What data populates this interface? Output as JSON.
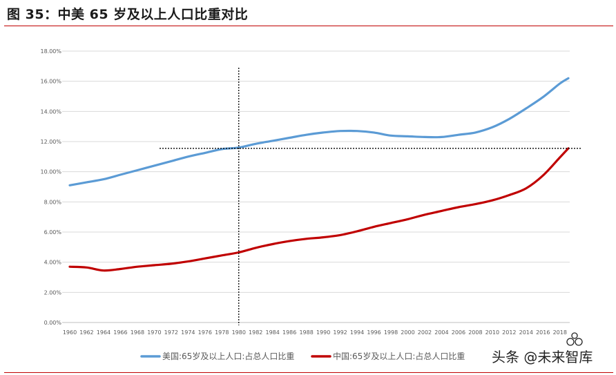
{
  "title": "图 35：中美 65 岁及以上人口比重对比",
  "colors": {
    "rule": "#c00000",
    "usa": "#5b9bd5",
    "china": "#c00000",
    "grid": "#d9d9d9",
    "ref": "#000000"
  },
  "chart_data": {
    "type": "line",
    "title": "",
    "xlabel": "",
    "ylabel": "",
    "xlim": [
      1960,
      2019
    ],
    "ylim": [
      0,
      18
    ],
    "grid": "horizontal",
    "legend_position": "bottom",
    "x_tick_labels": [
      "1960",
      "1962",
      "1964",
      "1966",
      "1968",
      "1970",
      "1972",
      "1974",
      "1976",
      "1978",
      "1980",
      "1982",
      "1984",
      "1986",
      "1988",
      "1990",
      "1992",
      "1994",
      "1996",
      "1998",
      "2000",
      "2002",
      "2004",
      "2006",
      "2008",
      "2010",
      "2012",
      "2014",
      "2016",
      "2018"
    ],
    "y_tick_labels": [
      "0.00%",
      "2.00%",
      "4.00%",
      "6.00%",
      "8.00%",
      "10.00%",
      "12.00%",
      "14.00%",
      "16.00%",
      "18.00%"
    ],
    "reference_lines": {
      "vertical_x": 1980,
      "horizontal_y": 11.55
    },
    "series": [
      {
        "name": "美国:65岁及以上人口:占总人口比重",
        "x": [
          1960,
          1962,
          1964,
          1966,
          1968,
          1970,
          1972,
          1974,
          1976,
          1978,
          1980,
          1982,
          1984,
          1986,
          1988,
          1990,
          1992,
          1994,
          1996,
          1998,
          2000,
          2002,
          2004,
          2006,
          2008,
          2010,
          2012,
          2014,
          2016,
          2018,
          2019
        ],
        "values": [
          9.1,
          9.3,
          9.5,
          9.8,
          10.1,
          10.4,
          10.7,
          11.0,
          11.25,
          11.5,
          11.6,
          11.85,
          12.05,
          12.25,
          12.45,
          12.6,
          12.7,
          12.7,
          12.6,
          12.4,
          12.35,
          12.3,
          12.3,
          12.45,
          12.6,
          12.95,
          13.5,
          14.2,
          14.95,
          15.85,
          16.2
        ]
      },
      {
        "name": "中国:65岁及以上人口:占总人口比重",
        "x": [
          1960,
          1962,
          1964,
          1966,
          1968,
          1970,
          1972,
          1974,
          1976,
          1978,
          1980,
          1982,
          1984,
          1986,
          1988,
          1990,
          1992,
          1994,
          1996,
          1998,
          2000,
          2002,
          2004,
          2006,
          2008,
          2010,
          2012,
          2014,
          2016,
          2018,
          2019
        ],
        "values": [
          3.7,
          3.65,
          3.45,
          3.55,
          3.7,
          3.8,
          3.9,
          4.05,
          4.25,
          4.45,
          4.65,
          4.95,
          5.2,
          5.4,
          5.55,
          5.65,
          5.8,
          6.05,
          6.35,
          6.6,
          6.85,
          7.15,
          7.4,
          7.65,
          7.85,
          8.1,
          8.45,
          8.9,
          9.75,
          10.95,
          11.55
        ]
      }
    ]
  },
  "watermark": {
    "text": "头条 @未来智库"
  }
}
